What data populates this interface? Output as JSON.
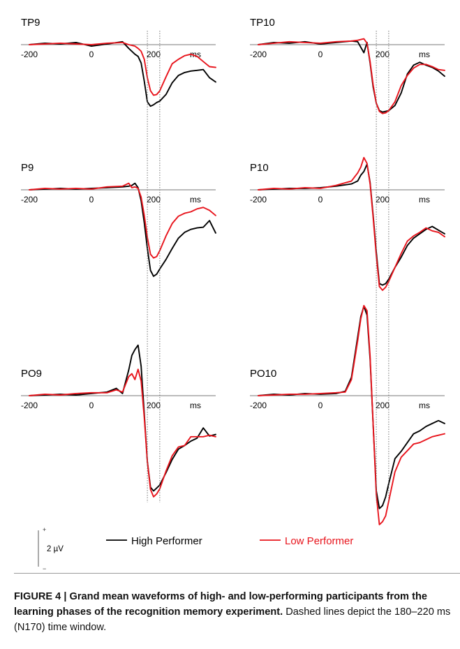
{
  "chart_data": {
    "type": "line",
    "x_unit": "ms",
    "x_ticks": [
      -200,
      0,
      200
    ],
    "x_range": [
      -200,
      400
    ],
    "y_unit": "µV",
    "time_window": [
      180,
      220
    ],
    "scale_bar": {
      "label": "2 µV",
      "plus": "+",
      "minus": "−",
      "value": 2
    },
    "polarity": "negative down",
    "series_names": [
      "High Performer",
      "Low Performer"
    ],
    "colors": {
      "High Performer": "#000000",
      "Low Performer": "#e8141c",
      "window_lines": "#666666"
    },
    "panels": [
      {
        "label": "TP9",
        "series": [
          {
            "name": "High Performer",
            "x": [
              -200,
              -150,
              -100,
              -50,
              0,
              50,
              100,
              120,
              140,
              150,
              160,
              170,
              180,
              190,
              200,
              210,
              220,
              240,
              260,
              280,
              300,
              320,
              340,
              360,
              380,
              400
            ],
            "y": [
              0,
              0.2,
              0.1,
              0.3,
              -0.2,
              0.1,
              0.4,
              -0.5,
              -1.3,
              -1.6,
              -2.5,
              -5.0,
              -7.8,
              -8.4,
              -8.2,
              -7.9,
              -7.7,
              -6.8,
              -5.2,
              -4.2,
              -3.8,
              -3.6,
              -3.5,
              -3.4,
              -4.5,
              -5.1
            ]
          },
          {
            "name": "Low Performer",
            "x": [
              -200,
              -150,
              -100,
              -50,
              0,
              50,
              100,
              120,
              140,
              150,
              160,
              170,
              180,
              190,
              200,
              210,
              220,
              240,
              260,
              280,
              300,
              320,
              340,
              360,
              380,
              400
            ],
            "y": [
              0,
              0.1,
              0.2,
              0.1,
              0,
              0.2,
              0.3,
              0,
              -0.2,
              -0.5,
              -0.9,
              -2.0,
              -4.5,
              -6.3,
              -6.9,
              -6.8,
              -6.3,
              -4.4,
              -2.6,
              -2.0,
              -1.5,
              -1.3,
              -1.6,
              -2.3,
              -3.0,
              -3.1
            ]
          }
        ]
      },
      {
        "label": "TP10",
        "series": [
          {
            "name": "High Performer",
            "x": [
              -200,
              -150,
              -100,
              -50,
              0,
              50,
              100,
              120,
              140,
              150,
              160,
              170,
              180,
              190,
              200,
              210,
              220,
              240,
              260,
              280,
              300,
              320,
              340,
              360,
              380,
              400
            ],
            "y": [
              0,
              0.3,
              0.2,
              0.4,
              0.1,
              0.3,
              0.5,
              0.4,
              -1.1,
              0.3,
              -2.5,
              -5.8,
              -8.0,
              -9.0,
              -9.2,
              -9.1,
              -9.0,
              -8.3,
              -6.6,
              -4.0,
              -2.8,
              -2.4,
              -2.8,
              -3.1,
              -3.6,
              -4.3
            ]
          },
          {
            "name": "Low Performer",
            "x": [
              -200,
              -150,
              -100,
              -50,
              0,
              50,
              100,
              120,
              140,
              150,
              160,
              170,
              180,
              190,
              200,
              210,
              220,
              240,
              260,
              280,
              300,
              320,
              340,
              360,
              380,
              400
            ],
            "y": [
              0,
              0.2,
              0.4,
              0.3,
              0.2,
              0.4,
              0.5,
              0.6,
              0.8,
              0.2,
              -2.3,
              -5.5,
              -8.0,
              -9.1,
              -9.4,
              -9.3,
              -9.0,
              -7.8,
              -5.6,
              -4.2,
              -3.2,
              -2.7,
              -2.7,
              -3.0,
              -3.4,
              -3.5
            ]
          }
        ]
      },
      {
        "label": "P9",
        "series": [
          {
            "name": "High Performer",
            "x": [
              -200,
              -150,
              -100,
              -50,
              0,
              50,
              100,
              120,
              130,
              140,
              150,
              160,
              170,
              180,
              190,
              200,
              210,
              220,
              240,
              260,
              280,
              300,
              320,
              340,
              360,
              380,
              400
            ],
            "y": [
              0,
              0.1,
              0.2,
              0.1,
              0.2,
              0.3,
              0.4,
              0.5,
              0.6,
              0.9,
              0.3,
              -1.5,
              -4.5,
              -8.0,
              -11.0,
              -11.8,
              -11.5,
              -10.8,
              -9.5,
              -8.0,
              -6.6,
              -5.8,
              -5.4,
              -5.2,
              -5.1,
              -4.2,
              -5.9
            ]
          },
          {
            "name": "Low Performer",
            "x": [
              -200,
              -150,
              -100,
              -50,
              0,
              50,
              100,
              120,
              130,
              140,
              150,
              160,
              170,
              180,
              190,
              200,
              210,
              220,
              240,
              260,
              280,
              300,
              320,
              340,
              360,
              380,
              400
            ],
            "y": [
              0,
              0.2,
              0.1,
              0.2,
              0.1,
              0.4,
              0.5,
              0.9,
              0.3,
              0.4,
              0.2,
              -1.0,
              -3.5,
              -6.5,
              -8.8,
              -9.3,
              -9.1,
              -8.3,
              -6.3,
              -4.6,
              -3.6,
              -3.2,
              -3.0,
              -2.6,
              -2.4,
              -2.8,
              -3.5
            ]
          }
        ]
      },
      {
        "label": "P10",
        "series": [
          {
            "name": "High Performer",
            "x": [
              -200,
              -150,
              -100,
              -50,
              0,
              50,
              100,
              120,
              130,
              140,
              150,
              160,
              170,
              180,
              190,
              200,
              210,
              220,
              240,
              260,
              280,
              300,
              320,
              340,
              360,
              380,
              400
            ],
            "y": [
              0,
              0.1,
              0.2,
              0.2,
              0.3,
              0.5,
              0.8,
              1.2,
              2.0,
              2.5,
              3.5,
              1.0,
              -3.5,
              -8.5,
              -12.8,
              -13.0,
              -12.8,
              -12.2,
              -10.6,
              -9.2,
              -7.6,
              -6.6,
              -6.0,
              -5.4,
              -5.0,
              -5.5,
              -6.0
            ]
          },
          {
            "name": "Low Performer",
            "x": [
              -200,
              -150,
              -100,
              -50,
              0,
              50,
              100,
              120,
              130,
              140,
              150,
              160,
              170,
              180,
              190,
              200,
              210,
              220,
              240,
              260,
              280,
              300,
              320,
              340,
              360,
              380,
              400
            ],
            "y": [
              0,
              0.2,
              0.1,
              0.3,
              0.2,
              0.6,
              1.2,
              2.3,
              3.1,
              4.4,
              3.6,
              0.8,
              -3.8,
              -9.0,
              -13.2,
              -13.7,
              -13.3,
              -12.5,
              -10.6,
              -8.7,
              -7.0,
              -6.3,
              -5.8,
              -5.2,
              -5.6,
              -5.8,
              -6.4
            ]
          }
        ]
      },
      {
        "label": "PO9",
        "series": [
          {
            "name": "High Performer",
            "x": [
              -200,
              -150,
              -100,
              -50,
              0,
              50,
              80,
              100,
              120,
              130,
              140,
              150,
              160,
              170,
              180,
              190,
              200,
              210,
              220,
              240,
              260,
              280,
              300,
              320,
              340,
              360,
              380,
              400
            ],
            "y": [
              0,
              0.1,
              0.2,
              0.1,
              0.3,
              0.5,
              1.0,
              0.3,
              3.5,
              5.5,
              6.3,
              6.9,
              4.0,
              -2.5,
              -9.0,
              -12.5,
              -13.0,
              -12.6,
              -12.2,
              -10.5,
              -8.7,
              -7.3,
              -6.8,
              -6.2,
              -5.8,
              -4.4,
              -5.5,
              -5.3
            ]
          },
          {
            "name": "Low Performer",
            "x": [
              -200,
              -150,
              -100,
              -50,
              0,
              50,
              80,
              100,
              120,
              130,
              140,
              150,
              160,
              170,
              180,
              190,
              200,
              210,
              220,
              240,
              260,
              280,
              300,
              320,
              340,
              360,
              380,
              400
            ],
            "y": [
              0,
              0.2,
              0.1,
              0.3,
              0.4,
              0.4,
              0.8,
              0.5,
              2.6,
              3.0,
              2.2,
              3.6,
              2.0,
              -3.0,
              -9.0,
              -12.8,
              -13.8,
              -13.4,
              -12.7,
              -10.3,
              -8.2,
              -7.0,
              -6.8,
              -5.6,
              -5.6,
              -5.6,
              -5.4,
              -5.6
            ]
          }
        ]
      },
      {
        "label": "PO10",
        "series": [
          {
            "name": "High Performer",
            "x": [
              -200,
              -150,
              -100,
              -50,
              0,
              50,
              80,
              100,
              120,
              130,
              140,
              150,
              160,
              170,
              180,
              190,
              200,
              210,
              220,
              240,
              260,
              280,
              300,
              320,
              340,
              360,
              380,
              400
            ],
            "y": [
              0,
              0.2,
              0.1,
              0.3,
              0.2,
              0.3,
              0.6,
              2.5,
              8.0,
              10.8,
              12.2,
              11.0,
              5.0,
              -4.0,
              -13.0,
              -15.4,
              -15.0,
              -13.8,
              -12.0,
              -8.6,
              -7.6,
              -6.4,
              -5.2,
              -4.8,
              -4.2,
              -3.8,
              -3.4,
              -3.8
            ]
          },
          {
            "name": "Low Performer",
            "x": [
              -200,
              -150,
              -100,
              -50,
              0,
              50,
              80,
              100,
              120,
              130,
              140,
              150,
              160,
              170,
              180,
              190,
              200,
              210,
              220,
              240,
              260,
              280,
              300,
              320,
              340,
              360,
              380,
              400
            ],
            "y": [
              0,
              0.1,
              0.2,
              0.2,
              0.3,
              0.4,
              0.5,
              2.2,
              7.5,
              10.5,
              12.3,
              11.6,
              5.4,
              -4.0,
              -13.5,
              -17.6,
              -17.2,
              -16.4,
              -14.4,
              -10.4,
              -8.4,
              -7.5,
              -6.6,
              -6.4,
              -6.0,
              -5.6,
              -5.4,
              -5.2
            ]
          }
        ]
      }
    ]
  },
  "caption": {
    "figure_label": "FIGURE 4 |",
    "title": "Grand mean waveforms of high- and low-performing participants from the learning phases of the recognition memory experiment.",
    "text": "Dashed lines depict the 180–220 ms (N170) time window."
  }
}
